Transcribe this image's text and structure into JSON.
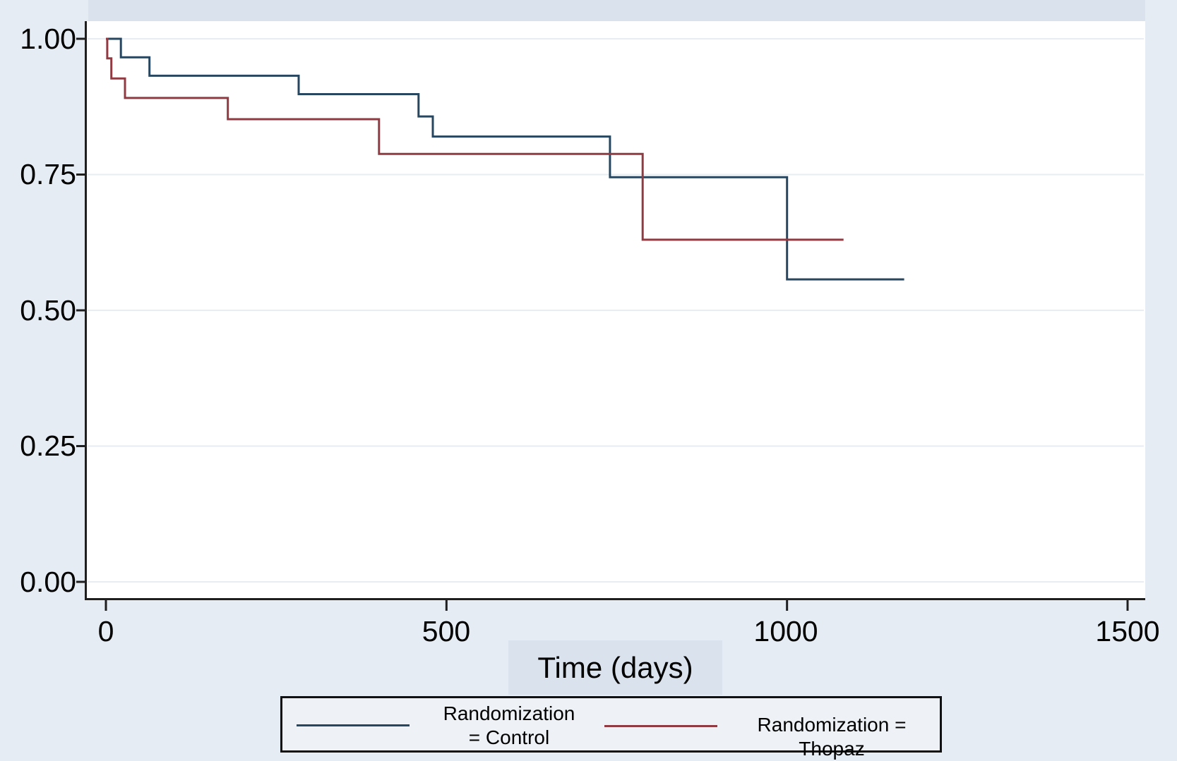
{
  "page": {
    "background_color": "#e6ecf3",
    "band_color": "#dae2ee",
    "plot_background": "#ffffff",
    "gridline_color": "#e7edf2",
    "axis_color": "#1f1f1f"
  },
  "chart_data": {
    "type": "line",
    "subtype": "kaplan-meier-step",
    "title": "",
    "xlabel": "Time (days)",
    "ylabel": "",
    "xlim": [
      0,
      1500
    ],
    "ylim": [
      0.0,
      1.0
    ],
    "grid": true,
    "legend_position": "bottom",
    "x_ticks": {
      "values": [
        0,
        500,
        1000,
        1500
      ],
      "labels": [
        "0",
        "500",
        "1000",
        "1500"
      ]
    },
    "y_ticks": {
      "values": [
        1.0,
        0.75,
        0.5,
        0.25,
        0.0
      ],
      "labels": [
        "1.00",
        "0.75",
        "0.50",
        "0.25",
        "0.00"
      ]
    },
    "series": [
      {
        "name": "Randomization = Control",
        "color": "#27465f",
        "points": [
          [
            0,
            1.0
          ],
          [
            22,
            0.966
          ],
          [
            64,
            0.932
          ],
          [
            283,
            0.898
          ],
          [
            459,
            0.857
          ],
          [
            480,
            0.82
          ],
          [
            740,
            0.745
          ],
          [
            1000,
            0.557
          ]
        ],
        "end_time": 1172
      },
      {
        "name": "Randomization = Thopaz",
        "color": "#903a42",
        "points": [
          [
            0,
            1.0
          ],
          [
            2,
            0.964
          ],
          [
            8,
            0.927
          ],
          [
            28,
            0.891
          ],
          [
            179,
            0.852
          ],
          [
            401,
            0.788
          ],
          [
            788,
            0.63
          ]
        ],
        "end_time": 1083
      }
    ]
  },
  "legend": {
    "items": [
      {
        "label": "Randomization\n= Control",
        "color": "#27465f"
      },
      {
        "label": "Randomization = Thopaz",
        "color": "#903a42"
      }
    ]
  }
}
